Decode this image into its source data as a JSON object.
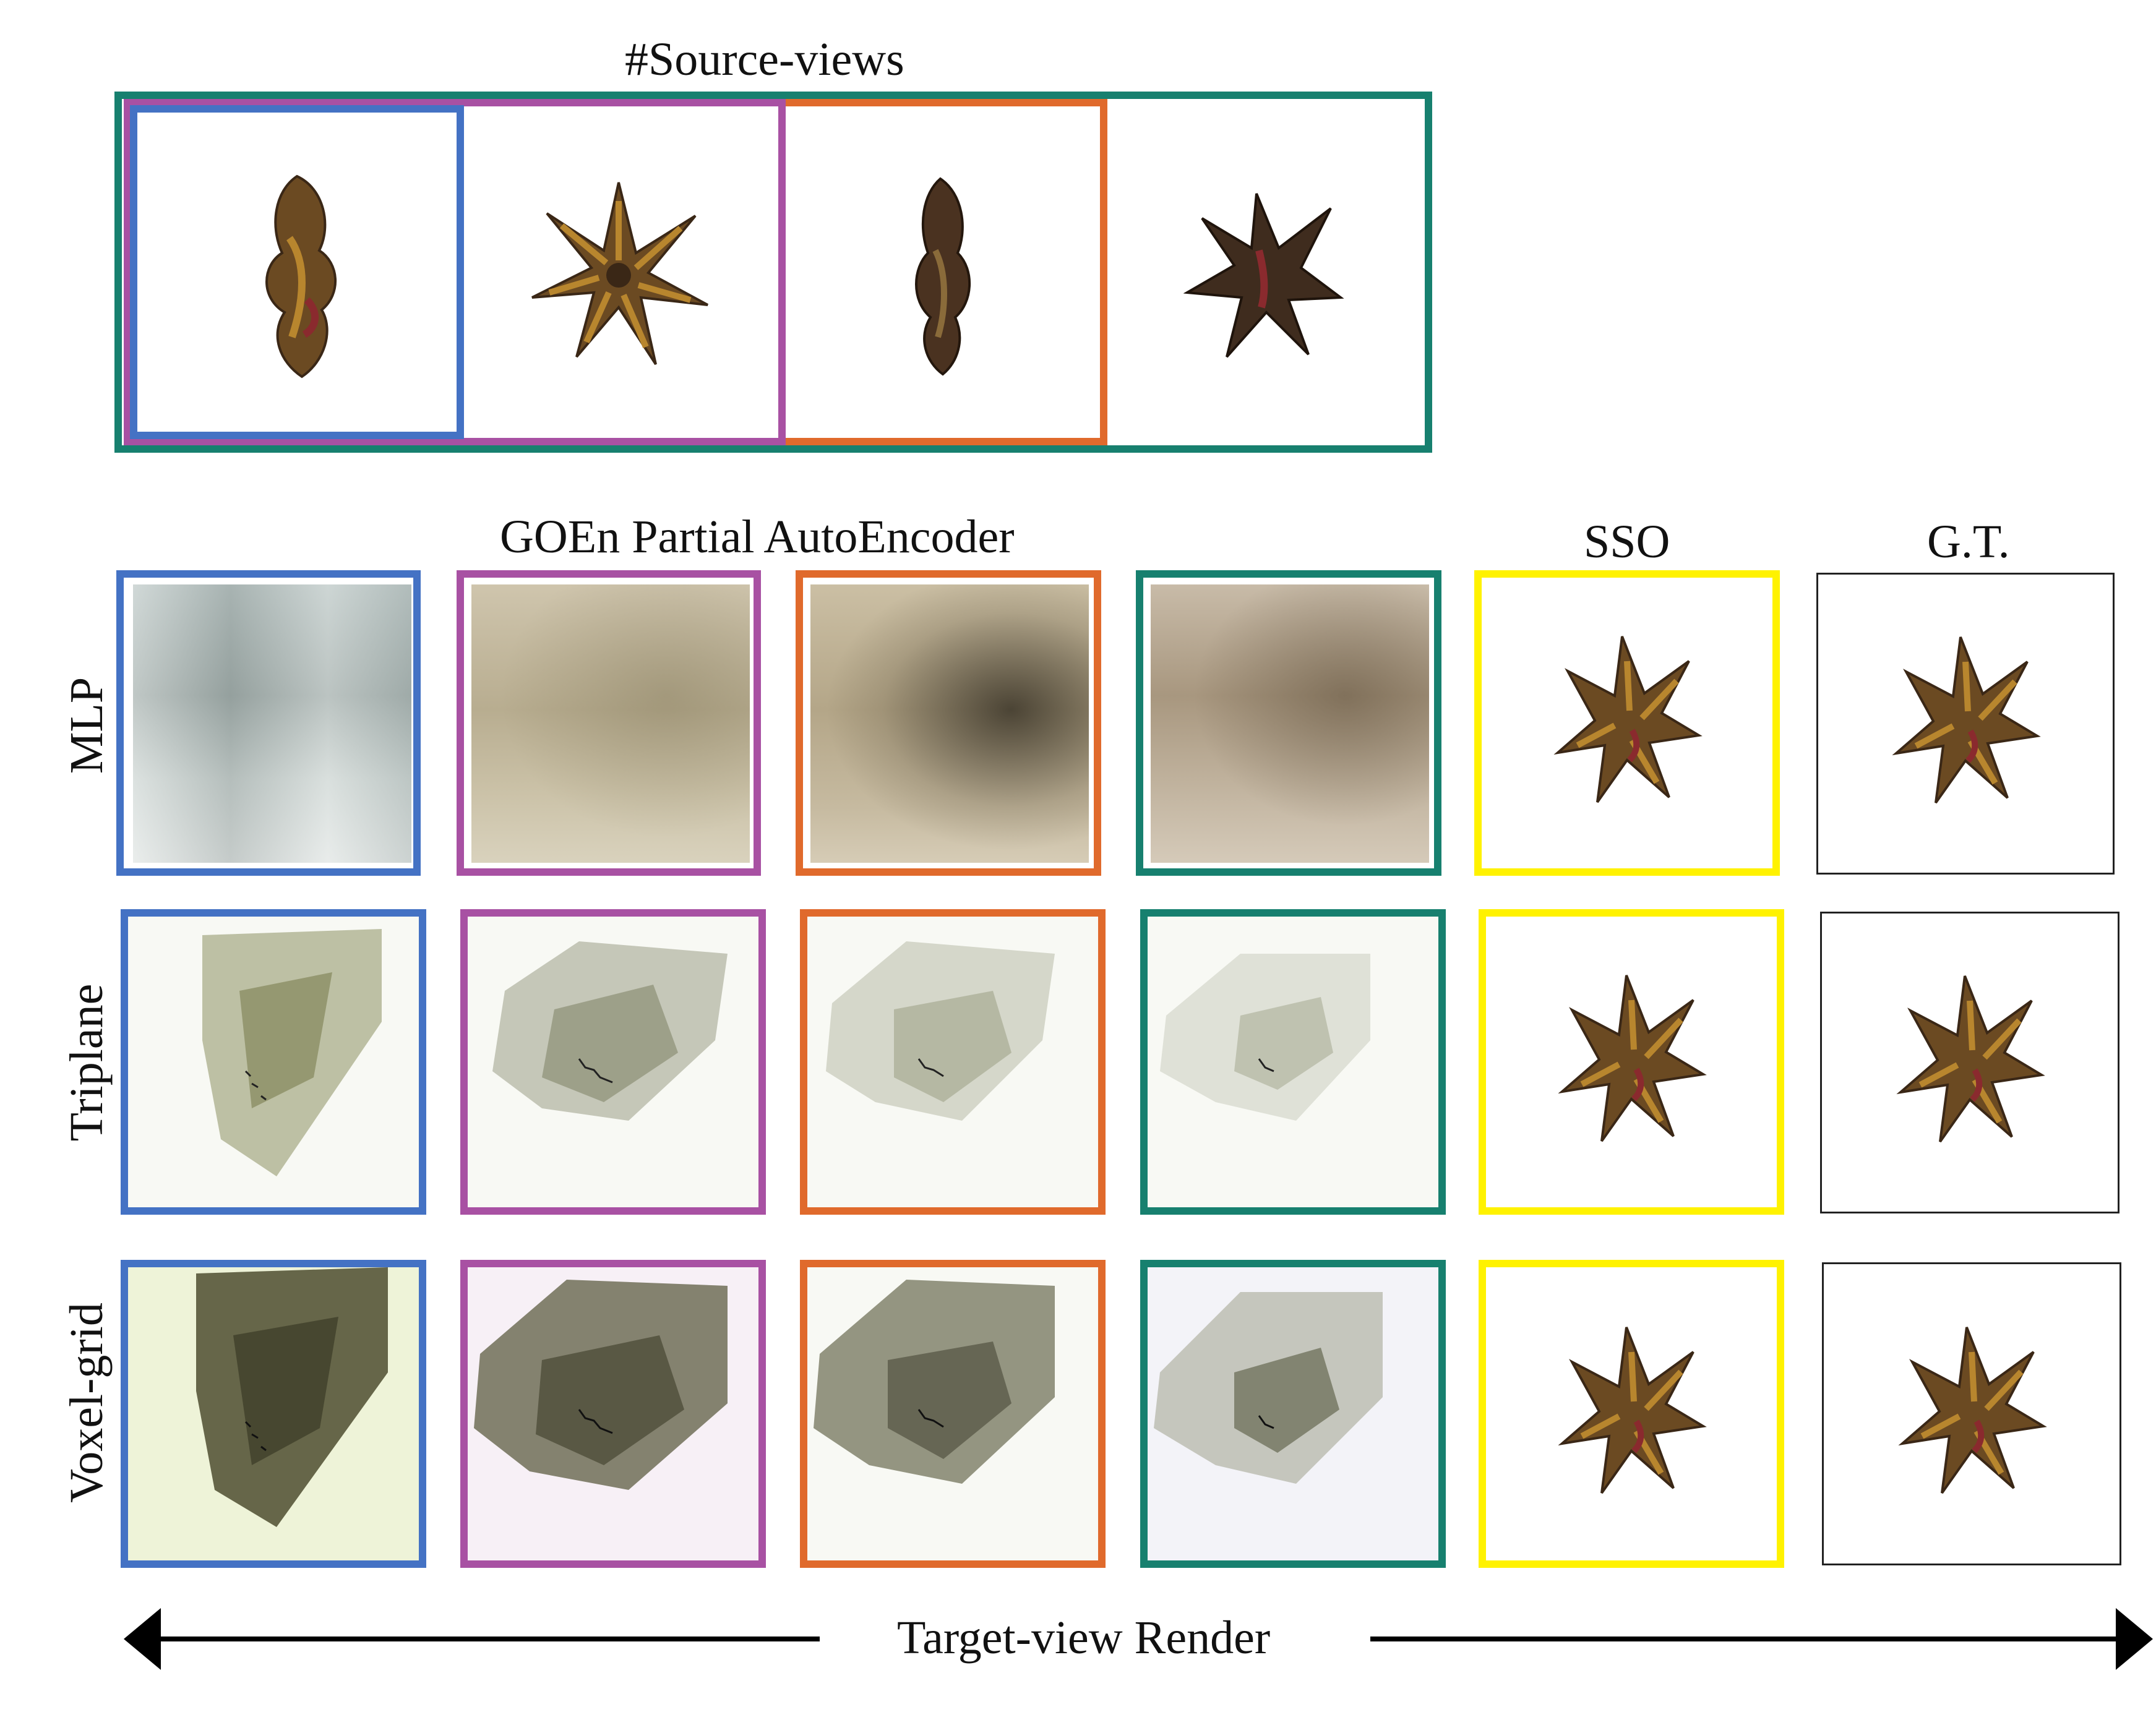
{
  "source_views": {
    "title": "#Source-views"
  },
  "columns": {
    "group_label": "GOEn Partial AutoEncoder",
    "sso_label": "SSO",
    "gt_label": "G.T."
  },
  "rows": [
    {
      "label": "MLP"
    },
    {
      "label": "Triplane"
    },
    {
      "label": "Voxel-grid"
    }
  ],
  "footer": {
    "label": "Target-view Render"
  },
  "colors": {
    "blue": "#4472c4",
    "purple": "#a851a3",
    "orange": "#e06a2c",
    "teal": "#17806f",
    "yellow": "#fff200",
    "object_main": "#6b4a22",
    "object_dark": "#3a2716",
    "object_highlight": "#b8862e",
    "object_red": "#8a2a2e"
  }
}
